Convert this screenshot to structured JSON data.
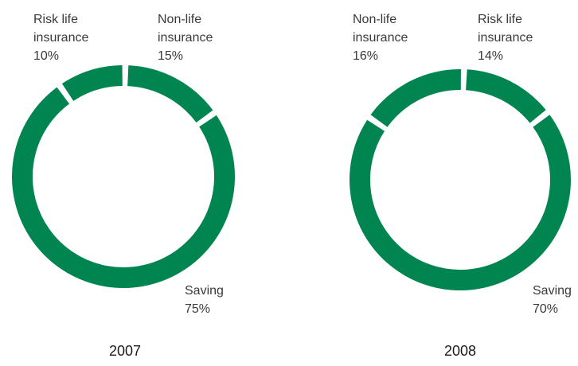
{
  "chart_data": [
    {
      "type": "pie",
      "title": "2007",
      "color": "#008550",
      "slices": [
        {
          "label": [
            "Non-life",
            "insurance"
          ],
          "value": 15,
          "display": "15%"
        },
        {
          "label": [
            "Saving"
          ],
          "value": 75,
          "display": "75%"
        },
        {
          "label": [
            "Risk life",
            "insurance"
          ],
          "value": 10,
          "display": "10%"
        }
      ]
    },
    {
      "type": "pie",
      "title": "2008",
      "color": "#008550",
      "slices": [
        {
          "label": [
            "Risk life",
            "insurance"
          ],
          "value": 14,
          "display": "14%"
        },
        {
          "label": [
            "Saving"
          ],
          "value": 70,
          "display": "70%"
        },
        {
          "label": [
            "Non-life",
            "insurance"
          ],
          "value": 16,
          "display": "16%"
        }
      ]
    }
  ]
}
